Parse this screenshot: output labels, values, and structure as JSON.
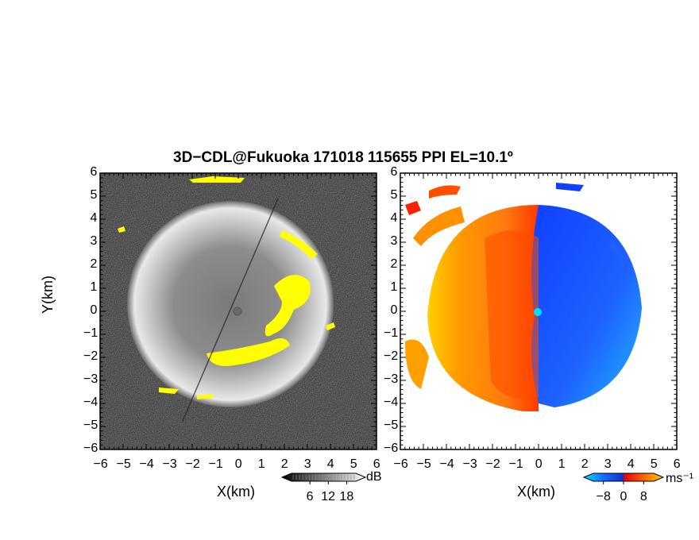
{
  "title": "3D−CDL@Fukuoka 171018 115655 PPI EL=10.1º",
  "colors": {
    "yellow": "#ffff00",
    "red": "#ff2000",
    "orange": "#ff8000",
    "blue": "#1e5aff",
    "cyan": "#00e0ff",
    "background": "#ffffff"
  },
  "chart_data": [
    {
      "type": "heatmap",
      "panel": "snr",
      "xlabel": "X(km)",
      "ylabel": "Y(km)",
      "xlim": [
        -6,
        6
      ],
      "ylim": [
        -6,
        6
      ],
      "x_ticks": [
        "−6",
        "−5",
        "−4",
        "−3",
        "−2",
        "−1",
        "0",
        "1",
        "2",
        "3",
        "4",
        "5",
        "6"
      ],
      "y_ticks": [
        "6",
        "5",
        "4",
        "3",
        "2",
        "1",
        "0",
        "−1",
        "−2",
        "−3",
        "−4",
        "−5",
        "−6"
      ],
      "colorbar": {
        "unit": "dB",
        "ticks": [
          "6",
          "12",
          "18"
        ],
        "range": [
          0,
          21
        ]
      }
    },
    {
      "type": "heatmap",
      "panel": "radial-velocity",
      "xlabel": "X(km)",
      "xlim": [
        -6,
        6
      ],
      "ylim": [
        -6,
        6
      ],
      "x_ticks": [
        "−6",
        "−5",
        "−4",
        "−3",
        "−2",
        "−1",
        "0",
        "1",
        "2",
        "3",
        "4",
        "5",
        "6"
      ],
      "y_ticks": [
        "6",
        "5",
        "4",
        "3",
        "2",
        "1",
        "0",
        "−1",
        "−2",
        "−3",
        "−4",
        "−5",
        "−6"
      ],
      "colorbar": {
        "unit": "ms⁻¹",
        "ticks": [
          "−8",
          "0",
          "8"
        ],
        "range": [
          -12,
          12
        ]
      }
    }
  ]
}
